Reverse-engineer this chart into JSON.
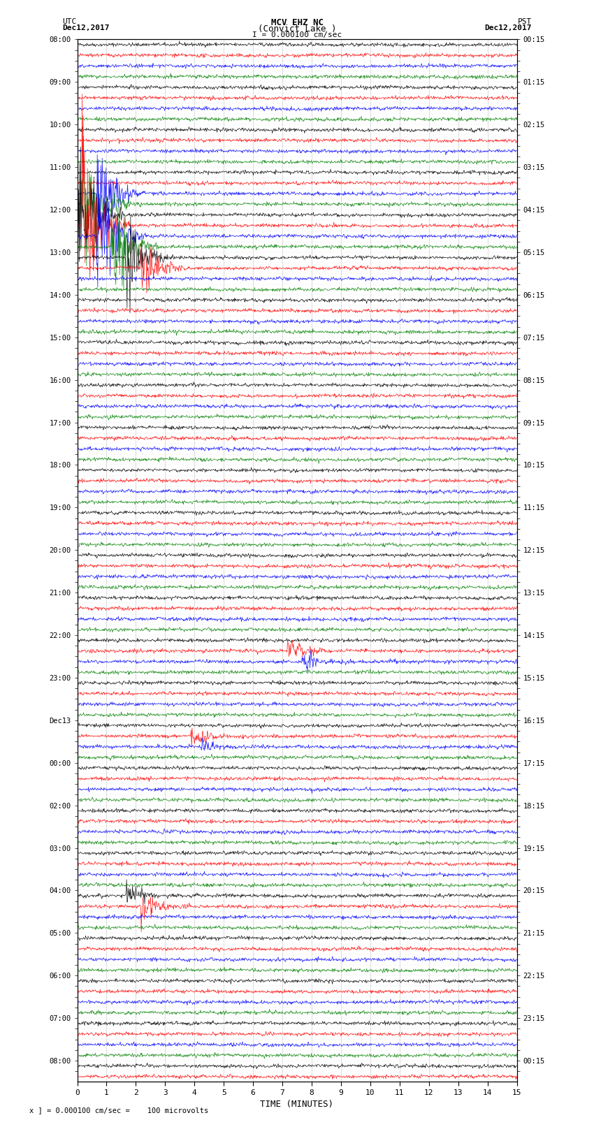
{
  "title_line1": "MCV EHZ NC",
  "title_line2": "(Convict Lake )",
  "title_line3": "I = 0.000100 cm/sec",
  "left_header_line1": "UTC",
  "left_header_line2": "Dec12,2017",
  "right_header_line1": "PST",
  "right_header_line2": "Dec12,2017",
  "bottom_label": "TIME (MINUTES)",
  "bottom_note": "x ] = 0.000100 cm/sec =    100 microvolts",
  "trace_colors": [
    "black",
    "red",
    "blue",
    "green"
  ],
  "num_traces_per_hour": 4,
  "num_hours": 24,
  "xmin": 0,
  "xmax": 15,
  "xticks": [
    0,
    1,
    2,
    3,
    4,
    5,
    6,
    7,
    8,
    9,
    10,
    11,
    12,
    13,
    14,
    15
  ],
  "figsize": [
    8.5,
    16.13
  ],
  "dpi": 100,
  "bg_color": "white",
  "grid_color": "#888888",
  "font_family": "monospace"
}
